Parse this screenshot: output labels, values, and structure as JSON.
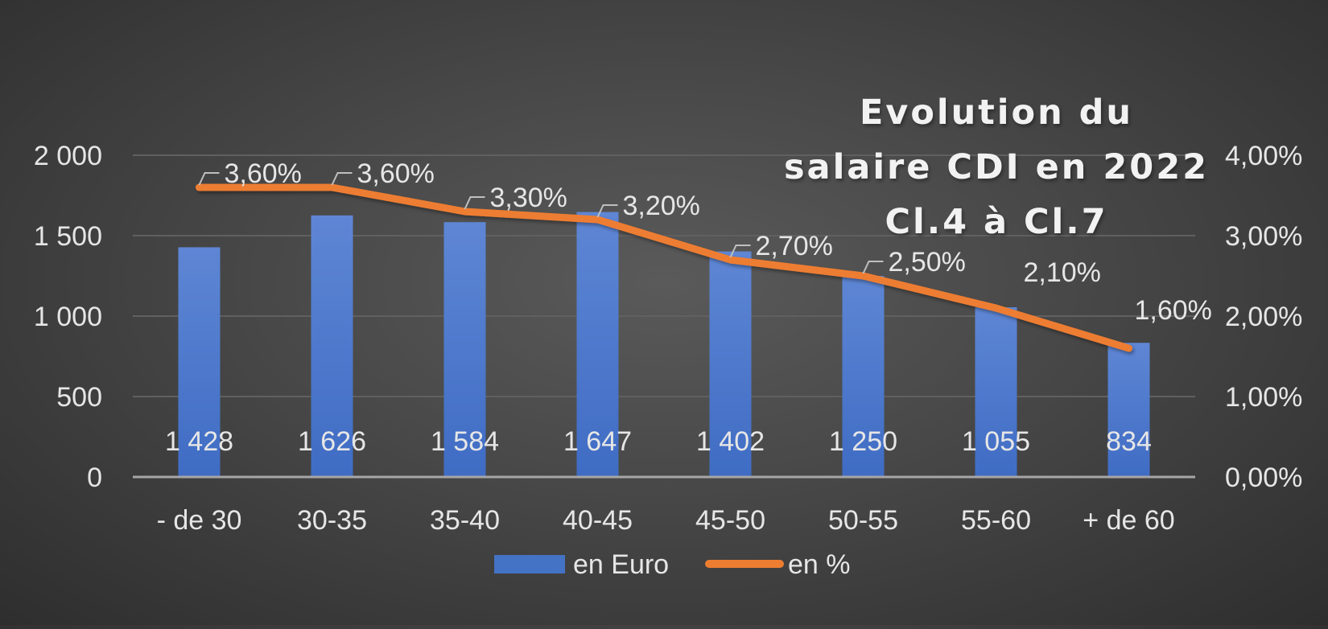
{
  "chart_data": {
    "type": "bar",
    "title_lines": [
      "Evolution du",
      "salaire CDI en 2022",
      "Cl.4 à Cl.7"
    ],
    "categories": [
      "- de 30",
      "30-35",
      "35-40",
      "40-45",
      "45-50",
      "50-55",
      "55-60",
      "+ de 60"
    ],
    "series": [
      {
        "name": "en Euro",
        "type": "bar",
        "axis": "left",
        "values": [
          1428,
          1626,
          1584,
          1647,
          1402,
          1250,
          1055,
          834
        ],
        "labels": [
          "1 428",
          "1 626",
          "1 584",
          "1 647",
          "1 402",
          "1 250",
          "1 055",
          "834"
        ]
      },
      {
        "name": "en %",
        "type": "line",
        "axis": "right",
        "values": [
          3.6,
          3.6,
          3.3,
          3.2,
          2.7,
          2.5,
          2.1,
          1.6
        ],
        "labels": [
          "3,60%",
          "3,60%",
          "3,30%",
          "3,20%",
          "2,70%",
          "2,50%",
          "2,10%",
          "1,60%"
        ]
      }
    ],
    "y_left": {
      "min": 0,
      "max": 2000,
      "ticks": [
        0,
        500,
        1000,
        1500,
        2000
      ],
      "tick_labels": [
        "0",
        "500",
        "1 000",
        "1 500",
        "2 000"
      ]
    },
    "y_right": {
      "min": 0,
      "max": 4,
      "ticks": [
        0,
        1,
        2,
        3,
        4
      ],
      "tick_labels": [
        "0,00%",
        "1,00%",
        "2,00%",
        "3,00%",
        "4,00%"
      ]
    },
    "grid": true,
    "legend_position": "bottom",
    "colors": {
      "bar": "#4472c4",
      "bar_light": "#5b85d6",
      "line": "#ed7d31",
      "text": "#e6e6e6",
      "grid": "#606060",
      "axis": "#a6a6a6"
    }
  }
}
